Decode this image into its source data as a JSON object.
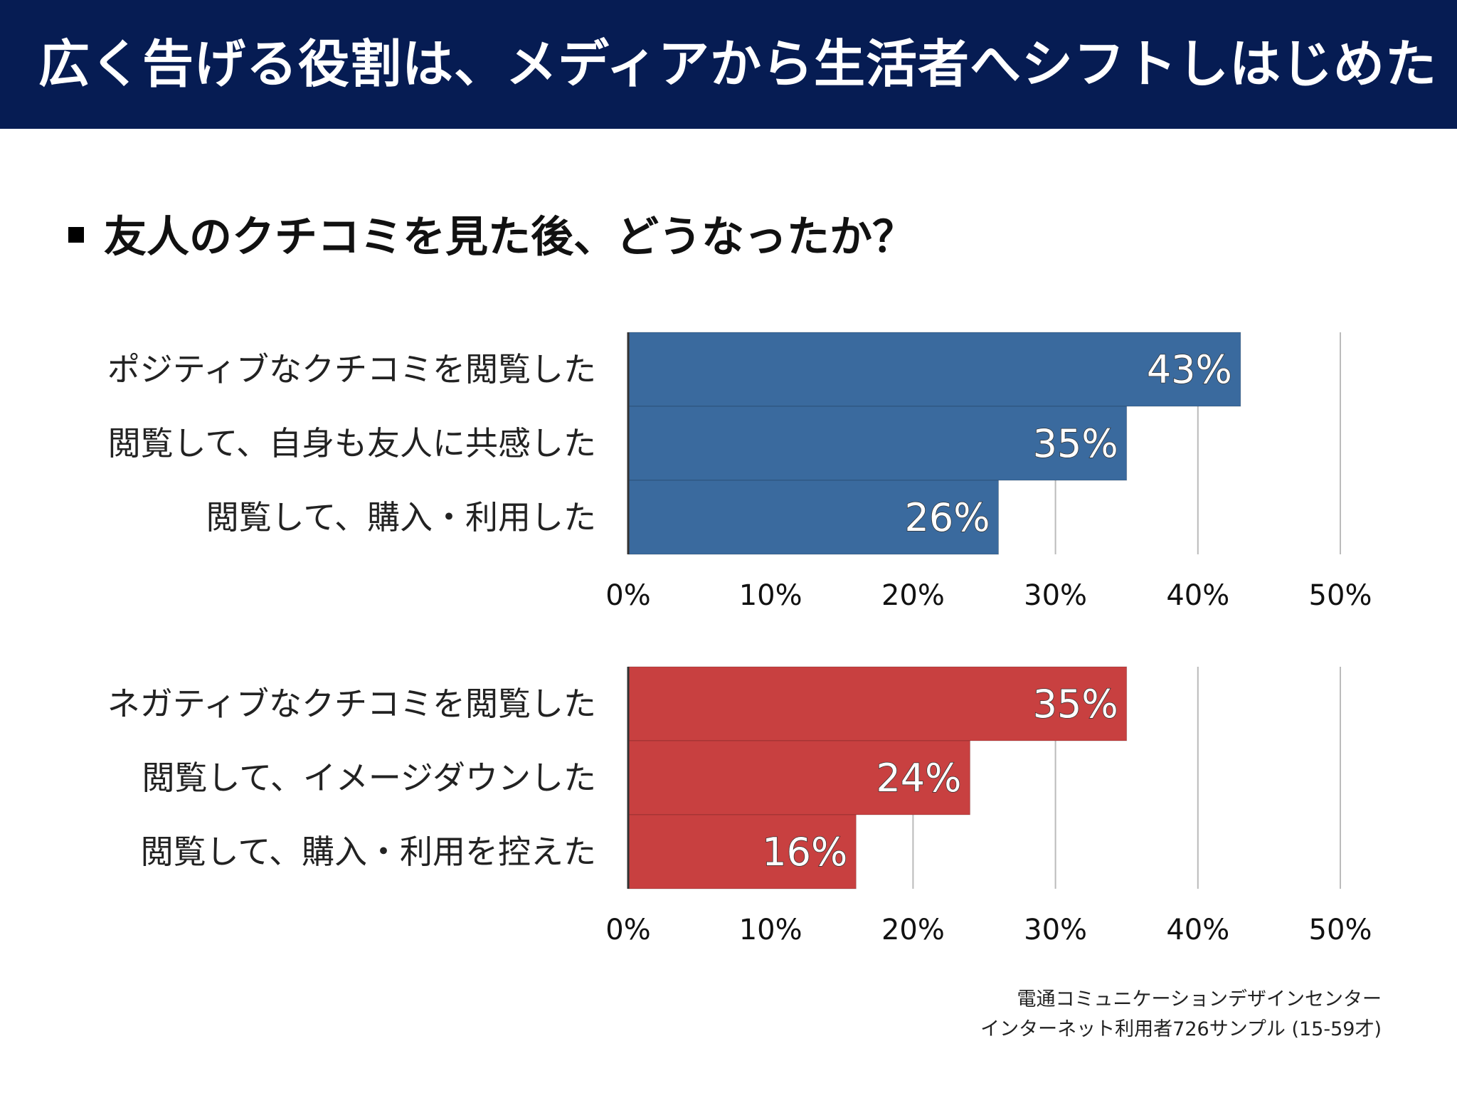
{
  "header": {
    "title": "広く告げる役割は、メディアから生活者へシフトしはじめた"
  },
  "subtitle": "友人のクチコミを見た後、どうなったか？",
  "source": {
    "line1": "電通コミュニケーションデザインセンター",
    "line2": "インターネット利用者726サンプル (15-59才)"
  },
  "colors": {
    "header_bg": "#061c53",
    "positive": "#3a6a9e",
    "negative": "#c84040",
    "grid": "#bbbbbb"
  },
  "chart_data": [
    {
      "type": "bar",
      "orientation": "horizontal",
      "categories": [
        "ポジティブなクチコミを閲覧した",
        "閲覧して、自身も友人に共感した",
        "閲覧して、購入・利用した"
      ],
      "values": [
        43,
        35,
        26
      ],
      "value_labels": [
        "43%",
        "35%",
        "26%"
      ],
      "xlim": [
        0,
        50
      ],
      "x_ticks": [
        "0%",
        "10%",
        "20%",
        "30%",
        "40%",
        "50%"
      ],
      "color": "#3a6a9e",
      "grid": true
    },
    {
      "type": "bar",
      "orientation": "horizontal",
      "categories": [
        "ネガティブなクチコミを閲覧した",
        "閲覧して、イメージダウンした",
        "閲覧して、購入・利用を控えた"
      ],
      "values": [
        35,
        24,
        16
      ],
      "value_labels": [
        "35%",
        "24%",
        "16%"
      ],
      "xlim": [
        0,
        50
      ],
      "x_ticks": [
        "0%",
        "10%",
        "20%",
        "30%",
        "40%",
        "50%"
      ],
      "color": "#c84040",
      "grid": true
    }
  ]
}
